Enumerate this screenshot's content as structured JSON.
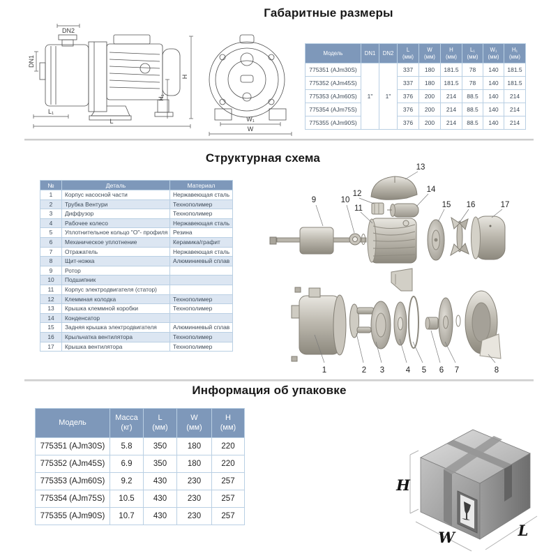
{
  "colors": {
    "table_header_bg": "#7e98ba",
    "table_row_alt": "#dce6f2",
    "table_border": "#b9cfe3",
    "divider": "#c6c6c6"
  },
  "sections": {
    "dimensions": {
      "title": "Габаритные размеры",
      "drawing_labels": {
        "dn2": "DN2",
        "dn1": "DN1",
        "h": "H",
        "h1": "H₁",
        "l1": "L₁",
        "l": "L",
        "w1": "W₁",
        "w": "W"
      },
      "table": {
        "headers": [
          "Модель",
          "DN1",
          "DN2",
          "L\n(мм)",
          "W\n(мм)",
          "H\n(мм)",
          "L₁\n(мм)",
          "W₁\n(мм)",
          "H₁\n(мм)"
        ],
        "dn1_value": "1\"",
        "dn2_value": "1\"",
        "rows": [
          {
            "model": "775351 (AJm30S)",
            "values": [
              "337",
              "180",
              "181.5",
              "78",
              "140",
              "181.5"
            ]
          },
          {
            "model": "775352 (AJm45S)",
            "values": [
              "337",
              "180",
              "181.5",
              "78",
              "140",
              "181.5"
            ]
          },
          {
            "model": "775353 (AJm60S)",
            "values": [
              "376",
              "200",
              "214",
              "88.5",
              "140",
              "214"
            ]
          },
          {
            "model": "775354 (AJm75S)",
            "values": [
              "376",
              "200",
              "214",
              "88.5",
              "140",
              "214"
            ]
          },
          {
            "model": "775355 (AJm90S)",
            "values": [
              "376",
              "200",
              "214",
              "88.5",
              "140",
              "214"
            ]
          }
        ]
      }
    },
    "structure": {
      "title": "Структурная схема",
      "table": {
        "headers": [
          "№",
          "Деталь",
          "Материал"
        ],
        "rows": [
          [
            "1",
            "Корпус насосной части",
            "Нержавеющая сталь"
          ],
          [
            "2",
            "Трубка Вентури",
            "Технополимер"
          ],
          [
            "3",
            "Диффузор",
            "Технополимер"
          ],
          [
            "4",
            "Рабочее колесо",
            "Нержавеющая сталь"
          ],
          [
            "5",
            "Уплотнительное кольцо \"О\"- профиля",
            "Резина"
          ],
          [
            "6",
            "Механическое уплотнение",
            "Керамика/графит"
          ],
          [
            "7",
            "Отражатель",
            "Нержавеющая сталь"
          ],
          [
            "8",
            "Щит-ножка",
            "Алюминиевый сплав"
          ],
          [
            "9",
            "Ротор",
            ""
          ],
          [
            "10",
            "Подшипник",
            ""
          ],
          [
            "11",
            "Корпус электродвигателя (статор)",
            ""
          ],
          [
            "12",
            "Клеммная колодка",
            "Технополимер"
          ],
          [
            "13",
            "Крышка клеммной коробки",
            "Технополимер"
          ],
          [
            "14",
            "Конденсатор",
            ""
          ],
          [
            "15",
            "Задняя крышка электродвигателя",
            "Алюминиевый сплав"
          ],
          [
            "16",
            "Крыльчатка вентилятора",
            "Технополимер"
          ],
          [
            "17",
            "Крышка вентилятора",
            "Технополимер"
          ]
        ]
      },
      "callouts": [
        "1",
        "2",
        "3",
        "4",
        "5",
        "6",
        "7",
        "8",
        "9",
        "10",
        "11",
        "12",
        "13",
        "14",
        "15",
        "16",
        "17"
      ]
    },
    "packaging": {
      "title": "Информация об упаковке",
      "table": {
        "headers": [
          "Модель",
          "Масса\n(кг)",
          "L\n(мм)",
          "W\n(мм)",
          "H\n(мм)"
        ],
        "rows": [
          [
            "775351 (AJm30S)",
            "5.8",
            "350",
            "180",
            "220"
          ],
          [
            "775352 (AJm45S)",
            "6.9",
            "350",
            "180",
            "220"
          ],
          [
            "775353 (AJm60S)",
            "9.2",
            "430",
            "230",
            "257"
          ],
          [
            "775354 (AJm75S)",
            "10.5",
            "430",
            "230",
            "257"
          ],
          [
            "775355 (AJm90S)",
            "10.7",
            "430",
            "230",
            "257"
          ]
        ]
      },
      "box_labels": {
        "h": "H",
        "w": "W",
        "l": "L"
      }
    }
  }
}
